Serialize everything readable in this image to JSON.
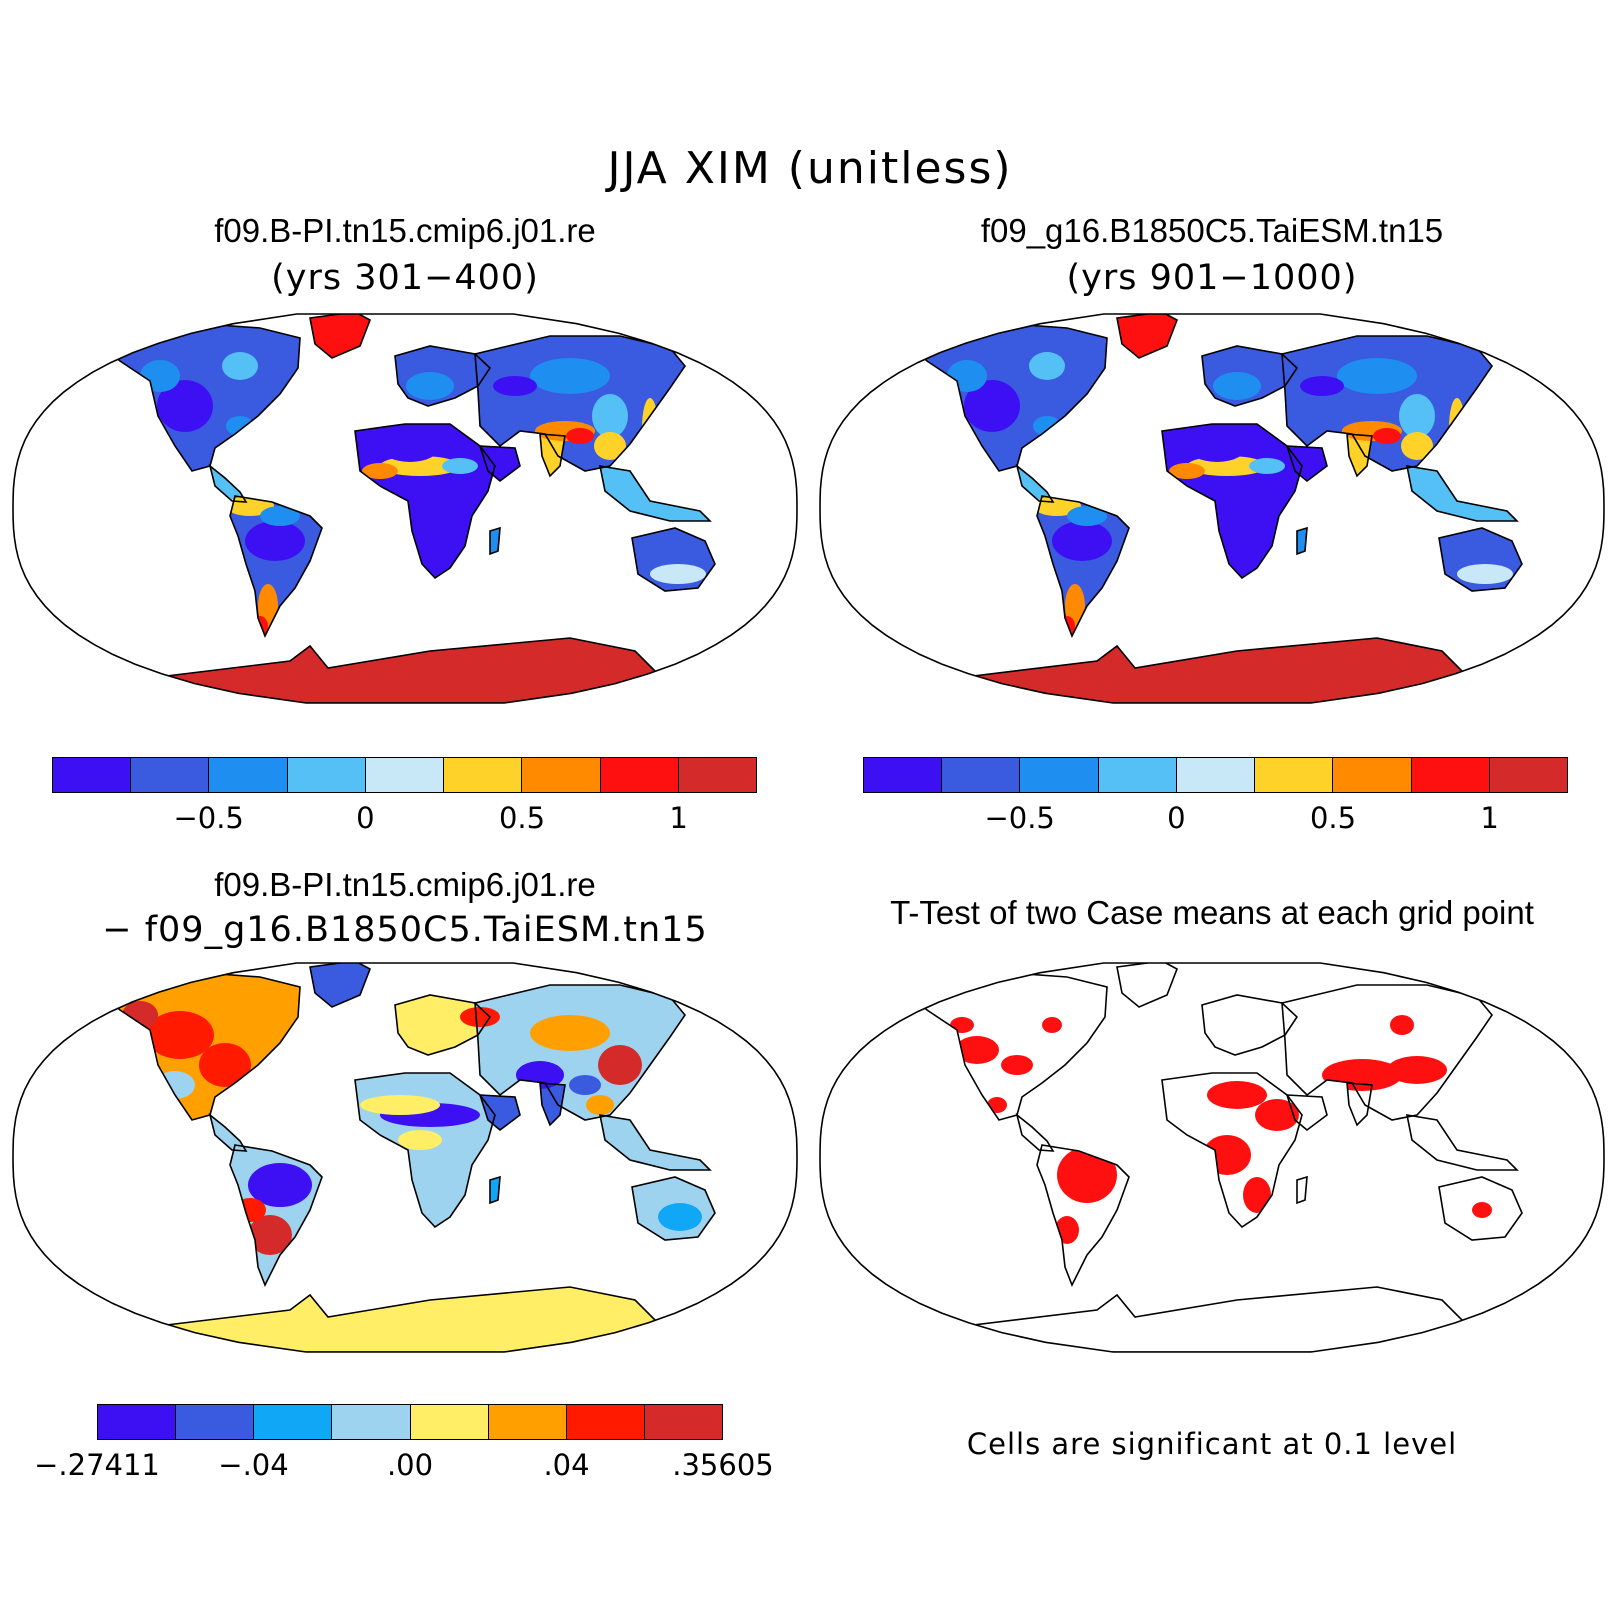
{
  "title": "JJA XIM (unitless)",
  "panels": [
    {
      "title": "f09.B-PI.tn15.cmip6.j01.re",
      "subtitle": "(yrs 301−400)"
    },
    {
      "title": "f09_g16.B1850C5.TaiESM.tn15",
      "subtitle": "(yrs 901−1000)"
    },
    {
      "title": "f09.B-PI.tn15.cmip6.j01.re",
      "subtitle": "− f09_g16.B1850C5.TaiESM.tn15"
    },
    {
      "title": "T-Test of two Case means at each grid point",
      "subtitle": ""
    }
  ],
  "colorbars": {
    "abs": {
      "colors": [
        "#3d10f4",
        "#3a5be0",
        "#1e8ff0",
        "#55c0f5",
        "#c8e8f8",
        "#ffd22a",
        "#ff8a00",
        "#ff1010",
        "#d52a2a"
      ],
      "ticks": [
        {
          "label": "−0.5",
          "boundary": 2
        },
        {
          "label": "0",
          "boundary": 4
        },
        {
          "label": "0.5",
          "boundary": 6
        },
        {
          "label": "1",
          "boundary": 8
        }
      ]
    },
    "diff": {
      "colors": [
        "#3d10f4",
        "#3a5be0",
        "#10a8f6",
        "#9dd3ee",
        "#ffee66",
        "#ffa000",
        "#ff1a00",
        "#d52a2a"
      ],
      "ticks": [
        {
          "label": "−.27411",
          "boundary": 0
        },
        {
          "label": "−.04",
          "boundary": 2
        },
        {
          "label": ".00",
          "boundary": 4
        },
        {
          "label": ".04",
          "boundary": 6
        },
        {
          "label": ".35605",
          "boundary": 8
        }
      ]
    }
  },
  "significance_note": "Cells are significant at 0.1 level",
  "map_colors": {
    "ocean": "#ffffff",
    "coast": "#000000",
    "significant": "#ff1010"
  }
}
